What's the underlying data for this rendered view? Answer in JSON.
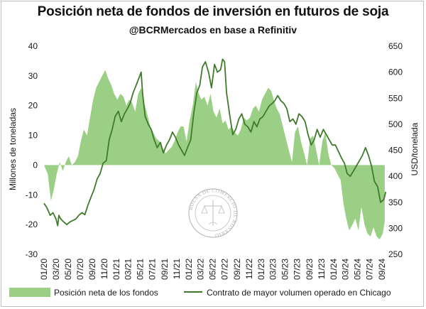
{
  "chart_data": {
    "type": "area+line",
    "title": "Posición neta de fondos de inversión en futuros de soja",
    "subtitle": "@BCRMercados en base a Refinitiv",
    "ylabel_left": "Millones de toneladas",
    "ylabel_right": "USD/tonelada",
    "y_left_range": [
      -30,
      40
    ],
    "y_left_ticks": [
      -30,
      -20,
      -10,
      0,
      10,
      20,
      30,
      40
    ],
    "y_right_range": [
      250,
      650
    ],
    "y_right_ticks": [
      250,
      300,
      350,
      400,
      450,
      500,
      550,
      600,
      650
    ],
    "x_range": [
      "2020-01",
      "2024-09"
    ],
    "x_ticks": [
      "01/20",
      "03/20",
      "05/20",
      "07/20",
      "09/20",
      "11/20",
      "01/21",
      "03/21",
      "05/21",
      "07/21",
      "09/21",
      "11/21",
      "01/22",
      "03/22",
      "05/22",
      "07/22",
      "09/22",
      "11/22",
      "01/23",
      "03/23",
      "05/23",
      "07/23",
      "09/23",
      "11/23",
      "01/24",
      "03/24",
      "05/24",
      "07/24",
      "09/24"
    ],
    "legend_position": "bottom",
    "grid": false,
    "colors": {
      "area": "#9ccf86",
      "line": "#3f7a2a"
    },
    "series": [
      {
        "name": "Posición neta de los fondos",
        "kind": "area",
        "axis": "left",
        "x": [
          "2020-01-01",
          "2020-01-20",
          "2020-02-05",
          "2020-02-20",
          "2020-03-05",
          "2020-03-20",
          "2020-04-05",
          "2020-04-20",
          "2020-05-05",
          "2020-05-20",
          "2020-06-05",
          "2020-06-20",
          "2020-07-05",
          "2020-07-20",
          "2020-08-05",
          "2020-08-20",
          "2020-09-05",
          "2020-09-20",
          "2020-10-05",
          "2020-10-20",
          "2020-11-05",
          "2020-11-20",
          "2020-12-05",
          "2020-12-20",
          "2021-01-05",
          "2021-01-20",
          "2021-02-05",
          "2021-02-20",
          "2021-03-05",
          "2021-03-20",
          "2021-04-05",
          "2021-04-20",
          "2021-05-05",
          "2021-05-20",
          "2021-06-05",
          "2021-06-20",
          "2021-07-05",
          "2021-07-20",
          "2021-08-05",
          "2021-08-20",
          "2021-09-05",
          "2021-09-20",
          "2021-10-05",
          "2021-10-20",
          "2021-11-05",
          "2021-11-20",
          "2021-12-05",
          "2021-12-20",
          "2022-01-05",
          "2022-01-20",
          "2022-02-05",
          "2022-02-20",
          "2022-03-05",
          "2022-03-20",
          "2022-04-05",
          "2022-04-20",
          "2022-05-05",
          "2022-05-20",
          "2022-06-05",
          "2022-06-20",
          "2022-07-05",
          "2022-07-20",
          "2022-08-05",
          "2022-08-20",
          "2022-09-05",
          "2022-09-20",
          "2022-10-05",
          "2022-10-20",
          "2022-11-05",
          "2022-11-20",
          "2022-12-05",
          "2022-12-20",
          "2023-01-05",
          "2023-01-20",
          "2023-02-05",
          "2023-02-20",
          "2023-03-05",
          "2023-03-20",
          "2023-04-05",
          "2023-04-20",
          "2023-05-05",
          "2023-05-20",
          "2023-06-05",
          "2023-06-20",
          "2023-07-05",
          "2023-07-20",
          "2023-08-05",
          "2023-08-20",
          "2023-09-05",
          "2023-09-20",
          "2023-10-05",
          "2023-10-20",
          "2023-11-05",
          "2023-11-20",
          "2023-12-05",
          "2023-12-20",
          "2024-01-05",
          "2024-01-20",
          "2024-02-05",
          "2024-02-20",
          "2024-03-05",
          "2024-03-20",
          "2024-04-05",
          "2024-04-20",
          "2024-05-05",
          "2024-05-20",
          "2024-06-05",
          "2024-06-20",
          "2024-07-05",
          "2024-07-20",
          "2024-08-05",
          "2024-08-20",
          "2024-09-05",
          "2024-09-15"
        ],
        "values": [
          0,
          -3,
          -12,
          -8,
          -3,
          1,
          -2,
          1,
          3,
          0,
          1,
          3,
          8,
          12,
          10,
          16,
          22,
          26,
          28,
          30,
          32,
          29,
          27,
          24,
          22,
          24,
          23,
          20,
          22,
          21,
          18,
          24,
          26,
          21,
          17,
          13,
          11,
          9,
          8,
          6,
          4,
          5,
          6,
          8,
          11,
          13,
          13,
          8,
          15,
          20,
          28,
          24,
          22,
          23,
          20,
          24,
          18,
          16,
          19,
          14,
          15,
          12,
          13,
          11,
          10,
          12,
          16,
          15,
          16,
          19,
          20,
          18,
          22,
          24,
          26,
          25,
          22,
          19,
          17,
          13,
          9,
          5,
          1,
          11,
          13,
          8,
          4,
          0,
          9,
          10,
          5,
          0,
          8,
          11,
          4,
          0,
          -1,
          -3,
          -5,
          -13,
          -18,
          -22,
          -20,
          -18,
          -22,
          -14,
          -20,
          -23,
          -24,
          -21,
          -24,
          -25,
          -23,
          -19
        ]
      },
      {
        "name": "Contrato de mayor volumen operado en Chicago",
        "kind": "line",
        "axis": "right",
        "x": [
          "2020-01-01",
          "2020-01-15",
          "2020-02-01",
          "2020-02-15",
          "2020-03-01",
          "2020-03-10",
          "2020-03-16",
          "2020-03-25",
          "2020-04-10",
          "2020-04-25",
          "2020-05-10",
          "2020-05-25",
          "2020-06-10",
          "2020-06-25",
          "2020-07-10",
          "2020-07-25",
          "2020-08-10",
          "2020-08-25",
          "2020-09-10",
          "2020-09-25",
          "2020-10-10",
          "2020-10-25",
          "2020-11-10",
          "2020-11-25",
          "2020-12-10",
          "2020-12-25",
          "2021-01-10",
          "2021-01-25",
          "2021-02-10",
          "2021-02-25",
          "2021-03-10",
          "2021-03-25",
          "2021-04-10",
          "2021-04-25",
          "2021-05-05",
          "2021-05-12",
          "2021-05-25",
          "2021-06-10",
          "2021-06-25",
          "2021-07-10",
          "2021-07-25",
          "2021-08-10",
          "2021-08-25",
          "2021-09-10",
          "2021-09-25",
          "2021-10-10",
          "2021-10-25",
          "2021-11-10",
          "2021-11-25",
          "2021-12-10",
          "2021-12-25",
          "2022-01-10",
          "2022-01-25",
          "2022-02-10",
          "2022-02-25",
          "2022-03-10",
          "2022-03-25",
          "2022-04-10",
          "2022-04-25",
          "2022-05-10",
          "2022-05-25",
          "2022-06-10",
          "2022-06-20",
          "2022-06-30",
          "2022-07-10",
          "2022-07-25",
          "2022-08-10",
          "2022-08-25",
          "2022-09-10",
          "2022-09-25",
          "2022-10-10",
          "2022-10-25",
          "2022-11-10",
          "2022-11-25",
          "2022-12-10",
          "2022-12-25",
          "2023-01-10",
          "2023-01-25",
          "2023-02-10",
          "2023-02-25",
          "2023-03-10",
          "2023-03-25",
          "2023-04-10",
          "2023-04-25",
          "2023-05-10",
          "2023-05-25",
          "2023-06-10",
          "2023-06-25",
          "2023-07-10",
          "2023-07-25",
          "2023-08-10",
          "2023-08-25",
          "2023-09-10",
          "2023-09-25",
          "2023-10-10",
          "2023-10-25",
          "2023-11-10",
          "2023-11-25",
          "2023-12-10",
          "2023-12-25",
          "2024-01-10",
          "2024-01-25",
          "2024-02-10",
          "2024-02-25",
          "2024-03-10",
          "2024-03-25",
          "2024-04-10",
          "2024-04-25",
          "2024-05-10",
          "2024-05-25",
          "2024-06-10",
          "2024-06-25",
          "2024-07-10",
          "2024-07-25",
          "2024-08-10",
          "2024-08-25",
          "2024-09-10",
          "2024-09-20"
        ],
        "values": [
          348,
          340,
          325,
          330,
          318,
          305,
          325,
          318,
          312,
          307,
          312,
          315,
          318,
          325,
          330,
          326,
          345,
          360,
          375,
          395,
          405,
          425,
          430,
          470,
          490,
          515,
          525,
          505,
          520,
          530,
          540,
          560,
          575,
          590,
          600,
          560,
          515,
          500,
          490,
          470,
          455,
          465,
          445,
          460,
          470,
          485,
          475,
          460,
          450,
          440,
          455,
          470,
          520,
          560,
          575,
          610,
          620,
          600,
          570,
          615,
          600,
          605,
          625,
          620,
          560,
          520,
          480,
          490,
          510,
          520,
          500,
          495,
          485,
          505,
          495,
          510,
          515,
          525,
          535,
          540,
          545,
          555,
          545,
          540,
          530,
          505,
          510,
          500,
          520,
          515,
          505,
          480,
          460,
          470,
          490,
          475,
          490,
          480,
          470,
          460,
          460,
          448,
          435,
          425,
          405,
          400,
          410,
          420,
          430,
          440,
          455,
          440,
          420,
          390,
          380,
          350,
          355,
          370
        ]
      }
    ]
  },
  "legend": {
    "area_label": "Posición neta de los fondos",
    "line_label": "Contrato de mayor volumen operado en Chicago"
  },
  "watermark": {
    "text": "BOLSA DE COMERCIO DE ROSARIO",
    "kind": "seal-logo"
  }
}
